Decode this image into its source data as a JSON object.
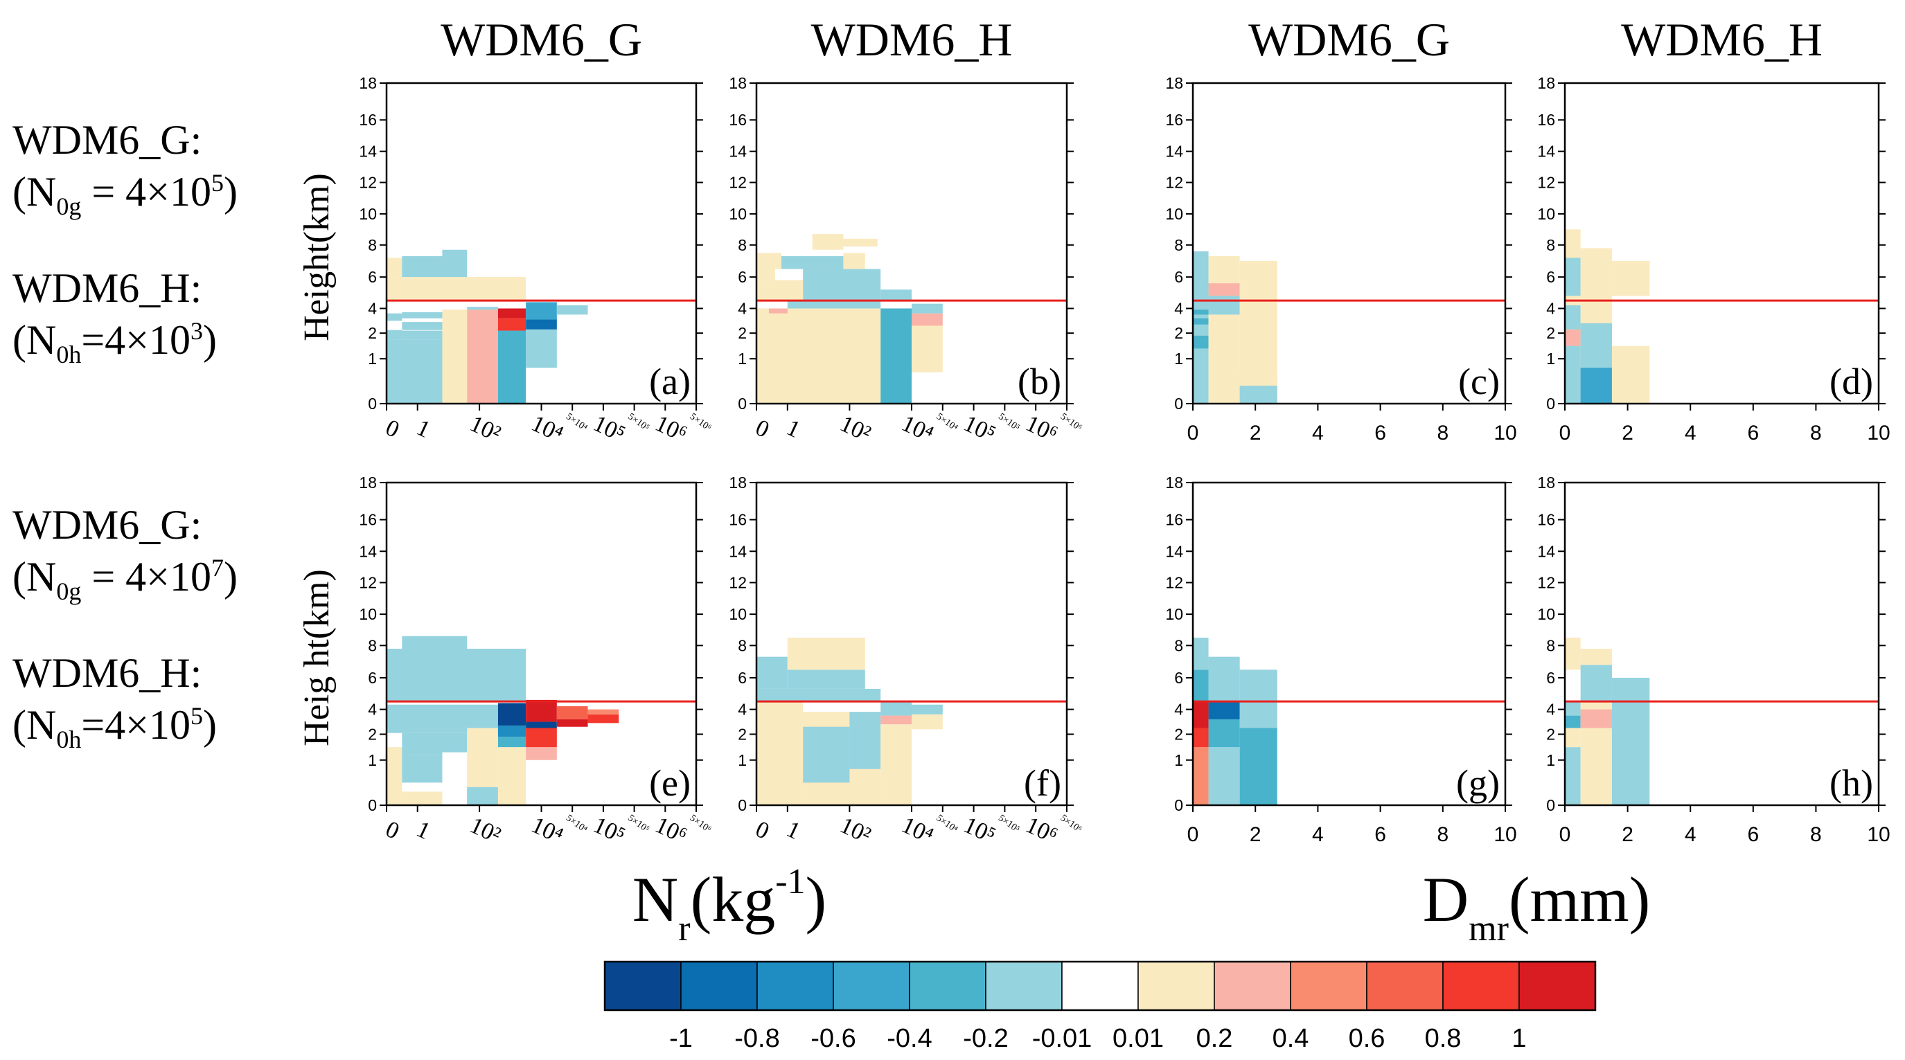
{
  "row_labels": [
    {
      "g_name": "WDM6_G:",
      "g_lhs": "(N",
      "g_sub": "0g",
      "g_rhs": " = 4×10",
      "g_exp": "5",
      "g_close": ")",
      "h_name": "WDM6_H:",
      "h_lhs": "(N",
      "h_sub": "0h",
      "h_rhs": "=4×10",
      "h_exp": "3",
      "h_close": ")"
    },
    {
      "g_name": "WDM6_G:",
      "g_lhs": "(N",
      "g_sub": "0g",
      "g_rhs": " = 4×10",
      "g_exp": "7",
      "g_close": ")",
      "h_name": "WDM6_H:",
      "h_lhs": "(N",
      "h_sub": "0h",
      "h_rhs": "=4×10",
      "h_exp": "5",
      "h_close": ")"
    }
  ],
  "colors": {
    "levels": [
      "#08478f",
      "#0b6eb0",
      "#1f8cc2",
      "#3aa6cd",
      "#49b3cc",
      "#95d3df",
      "#ffffff",
      "#faeac0",
      "#f9b3a8",
      "#f98c6e",
      "#f6634d",
      "#f3382d",
      "#d91c22"
    ],
    "reference_line": "#e8201c"
  },
  "chart_data": {
    "type": "heatmap",
    "column_titles": [
      "WDM6_G",
      "WDM6_H",
      "WDM6_G",
      "WDM6_H"
    ],
    "ylabels": [
      "Height(km)",
      "Heig ht(km)"
    ],
    "xlabels": {
      "nr": {
        "main": "N",
        "sub": "r",
        "unit_open": "(kg",
        "sup": "-1",
        "unit_close": ")"
      },
      "dmr": {
        "main": "D",
        "sub": "mr",
        "unit": "(mm)"
      }
    },
    "y_ticks": [
      {
        "v": 0,
        "l": "0"
      },
      {
        "v": 1,
        "l": "1"
      },
      {
        "v": 2,
        "l": "2"
      },
      {
        "v": 4,
        "l": "4"
      },
      {
        "v": 6,
        "l": "6"
      },
      {
        "v": 8,
        "l": "8"
      },
      {
        "v": 10,
        "l": "10"
      },
      {
        "v": 12,
        "l": "12"
      },
      {
        "v": 14,
        "l": "14"
      },
      {
        "v": 16,
        "l": "16"
      },
      {
        "v": 18,
        "l": "18"
      }
    ],
    "nr_x_ticks": [
      {
        "i": 0,
        "l": "0",
        "sm": false
      },
      {
        "i": 1,
        "l": "1",
        "sm": false
      },
      {
        "i": 3,
        "l": "10²",
        "sm": false
      },
      {
        "i": 5,
        "l": "10⁴",
        "sm": false
      },
      {
        "i": 6,
        "l": "5×10⁴",
        "sm": true
      },
      {
        "i": 7,
        "l": "10⁵",
        "sm": false
      },
      {
        "i": 8,
        "l": "5×10⁵",
        "sm": true
      },
      {
        "i": 9,
        "l": "10⁶",
        "sm": false
      },
      {
        "i": 10,
        "l": "5×10⁶",
        "sm": true
      }
    ],
    "dmr_x_ticks": [
      {
        "v": 0,
        "l": "0"
      },
      {
        "v": 2,
        "l": "2"
      },
      {
        "v": 4,
        "l": "4"
      },
      {
        "v": 6,
        "l": "6"
      },
      {
        "v": 8,
        "l": "8"
      },
      {
        "v": 10,
        "l": "10"
      }
    ],
    "nr_x_range": [
      0,
      10
    ],
    "dmr_x_range": [
      0,
      10
    ],
    "ylim": [
      0,
      18
    ],
    "reference_height_km": 4.5,
    "colorbar": {
      "labels": [
        "-1",
        "-0.8",
        "-0.6",
        "-0.4",
        "-0.2",
        "-0.01",
        "0.01",
        "0.2",
        "0.4",
        "0.6",
        "0.8",
        "1"
      ]
    },
    "panels": [
      {
        "id": "a",
        "label": "(a)",
        "xaxis": "nr",
        "cells": [
          {
            "x0": 0,
            "x1": 0.5,
            "y0": 1.75,
            "y1": 2.25,
            "c": 5
          },
          {
            "x0": 0.5,
            "x1": 1.8,
            "y0": 2.25,
            "y1": 2.9,
            "c": 5
          },
          {
            "x0": 0,
            "x1": 1.8,
            "y0": 0,
            "y1": 1.75,
            "c": 5
          },
          {
            "x0": 0.5,
            "x1": 1.8,
            "y0": 1.75,
            "y1": 2.2,
            "c": 5
          },
          {
            "x0": 0,
            "x1": 0.5,
            "y0": 3,
            "y1": 3.6,
            "c": 5
          },
          {
            "x0": 0.5,
            "x1": 1.8,
            "y0": 3.2,
            "y1": 3.7,
            "c": 5
          },
          {
            "x0": 1.8,
            "x1": 2.6,
            "y0": 0,
            "y1": 3.9,
            "c": 7
          },
          {
            "x0": 2.6,
            "x1": 3.6,
            "y0": 0,
            "y1": 3.9,
            "c": 8
          },
          {
            "x0": 2.6,
            "x1": 3.6,
            "y0": 3.9,
            "y1": 4.1,
            "c": 5
          },
          {
            "x0": 3.6,
            "x1": 4.5,
            "y0": 0,
            "y1": 2.2,
            "c": 4
          },
          {
            "x0": 3.6,
            "x1": 4.5,
            "y0": 2.2,
            "y1": 3.2,
            "c": 11
          },
          {
            "x0": 3.6,
            "x1": 4.5,
            "y0": 3.2,
            "y1": 4,
            "c": 12
          },
          {
            "x0": 4.5,
            "x1": 5.5,
            "y0": 0.8,
            "y1": 2.3,
            "c": 5
          },
          {
            "x0": 4.5,
            "x1": 5.5,
            "y0": 2.3,
            "y1": 3.1,
            "c": 1
          },
          {
            "x0": 4.5,
            "x1": 5.5,
            "y0": 3.1,
            "y1": 4.4,
            "c": 3
          },
          {
            "x0": 5.5,
            "x1": 6.5,
            "y0": 3.5,
            "y1": 4.2,
            "c": 5
          },
          {
            "x0": 0,
            "x1": 4.5,
            "y0": 4.5,
            "y1": 6,
            "c": 7
          },
          {
            "x0": 0,
            "x1": 0.5,
            "y0": 6,
            "y1": 7.2,
            "c": 7
          },
          {
            "x0": 0.5,
            "x1": 1.8,
            "y0": 6,
            "y1": 7.3,
            "c": 5
          },
          {
            "x0": 1.8,
            "x1": 2.6,
            "y0": 6,
            "y1": 7.7,
            "c": 5
          }
        ]
      },
      {
        "id": "b",
        "label": "(b)",
        "xaxis": "nr",
        "cells": [
          {
            "x0": 0,
            "x1": 4,
            "y0": 0,
            "y1": 4,
            "c": 7
          },
          {
            "x0": 4,
            "x1": 5,
            "y0": 0,
            "y1": 4,
            "c": 4
          },
          {
            "x0": 5,
            "x1": 6,
            "y0": 0.7,
            "y1": 2.6,
            "c": 7
          },
          {
            "x0": 5,
            "x1": 6,
            "y0": 2.6,
            "y1": 3.6,
            "c": 8
          },
          {
            "x0": 5,
            "x1": 6,
            "y0": 3.6,
            "y1": 4.3,
            "c": 5
          },
          {
            "x0": 0.4,
            "x1": 1,
            "y0": 3.6,
            "y1": 4,
            "c": 8
          },
          {
            "x0": 1,
            "x1": 4,
            "y0": 4,
            "y1": 4.5,
            "c": 5
          },
          {
            "x0": 0,
            "x1": 1.5,
            "y0": 4.5,
            "y1": 5.8,
            "c": 7
          },
          {
            "x0": 1.5,
            "x1": 4,
            "y0": 4.5,
            "y1": 6.5,
            "c": 5
          },
          {
            "x0": 4,
            "x1": 5,
            "y0": 4.5,
            "y1": 5.2,
            "c": 5
          },
          {
            "x0": 0,
            "x1": 0.6,
            "y0": 5.8,
            "y1": 6.5,
            "c": 7
          },
          {
            "x0": 0.8,
            "x1": 2.8,
            "y0": 6.5,
            "y1": 7.3,
            "c": 5
          },
          {
            "x0": 0,
            "x1": 0.8,
            "y0": 6.5,
            "y1": 7.5,
            "c": 7
          },
          {
            "x0": 2.8,
            "x1": 3.5,
            "y0": 6.5,
            "y1": 7.5,
            "c": 7
          },
          {
            "x0": 1.8,
            "x1": 2.8,
            "y0": 7.7,
            "y1": 8.7,
            "c": 7
          },
          {
            "x0": 2.8,
            "x1": 3.9,
            "y0": 7.9,
            "y1": 8.4,
            "c": 7
          }
        ]
      },
      {
        "id": "c",
        "label": "(c)",
        "xaxis": "dmr",
        "cells": [
          {
            "x0": 0,
            "x1": 0.5,
            "y0": 0,
            "y1": 7.6,
            "c": 5
          },
          {
            "x0": 0,
            "x1": 0.5,
            "y0": 1.4,
            "y1": 1.9,
            "c": 4
          },
          {
            "x0": 0,
            "x1": 0.5,
            "y0": 2.7,
            "y1": 3.2,
            "c": 4
          },
          {
            "x0": 0,
            "x1": 0.5,
            "y0": 3.5,
            "y1": 3.9,
            "c": 4
          },
          {
            "x0": 0.5,
            "x1": 1.5,
            "y0": 0,
            "y1": 7.3,
            "c": 7
          },
          {
            "x0": 0.5,
            "x1": 1.5,
            "y0": 4.8,
            "y1": 5.6,
            "c": 8
          },
          {
            "x0": 0.5,
            "x1": 1.5,
            "y0": 3.5,
            "y1": 4.8,
            "c": 5
          },
          {
            "x0": 1.5,
            "x1": 2.7,
            "y0": 0,
            "y1": 7,
            "c": 7
          },
          {
            "x0": 1.5,
            "x1": 2.7,
            "y0": 0,
            "y1": 0.7,
            "c": 7
          },
          {
            "x0": 1.5,
            "x1": 2.7,
            "y0": 0,
            "y1": 0.4,
            "c": 5
          }
        ]
      },
      {
        "id": "d",
        "label": "(d)",
        "xaxis": "dmr",
        "cells": [
          {
            "x0": 0,
            "x1": 0.5,
            "y0": 0,
            "y1": 9,
            "c": 7
          },
          {
            "x0": 0,
            "x1": 0.5,
            "y0": 4.8,
            "y1": 7.2,
            "c": 5
          },
          {
            "x0": 0,
            "x1": 0.5,
            "y0": 1.5,
            "y1": 2.3,
            "c": 8
          },
          {
            "x0": 0,
            "x1": 0.5,
            "y0": 0,
            "y1": 1.5,
            "c": 5
          },
          {
            "x0": 0,
            "x1": 0.5,
            "y0": 2.3,
            "y1": 4.2,
            "c": 5
          },
          {
            "x0": 0.5,
            "x1": 1.5,
            "y0": 0,
            "y1": 7.8,
            "c": 7
          },
          {
            "x0": 0.5,
            "x1": 1.5,
            "y0": 0,
            "y1": 2.8,
            "c": 5
          },
          {
            "x0": 0.5,
            "x1": 1.5,
            "y0": 0,
            "y1": 0.8,
            "c": 3
          },
          {
            "x0": 1.5,
            "x1": 2.7,
            "y0": 0,
            "y1": 1.5,
            "c": 7
          },
          {
            "x0": 1.5,
            "x1": 2.7,
            "y0": 4.8,
            "y1": 7,
            "c": 7
          }
        ]
      },
      {
        "id": "e",
        "label": "(e)",
        "xaxis": "nr",
        "cells": [
          {
            "x0": 0,
            "x1": 0.5,
            "y0": 0,
            "y1": 1.5,
            "c": 7
          },
          {
            "x0": 0.5,
            "x1": 1.8,
            "y0": 0.5,
            "y1": 1.2,
            "c": 5
          },
          {
            "x0": 0.5,
            "x1": 1.8,
            "y0": 1.2,
            "y1": 2.1,
            "c": 5
          },
          {
            "x0": 0,
            "x1": 3.6,
            "y0": 2.1,
            "y1": 4.3,
            "c": 5
          },
          {
            "x0": 1.8,
            "x1": 2.6,
            "y0": 1.3,
            "y1": 2.1,
            "c": 5
          },
          {
            "x0": 2.6,
            "x1": 3.6,
            "y0": 0,
            "y1": 2.5,
            "c": 7
          },
          {
            "x0": 2.6,
            "x1": 3.6,
            "y0": 0,
            "y1": 0.4,
            "c": 5
          },
          {
            "x0": 0.5,
            "x1": 1.8,
            "y0": 0,
            "y1": 0.3,
            "c": 7
          },
          {
            "x0": 3.6,
            "x1": 4.5,
            "y0": 0,
            "y1": 1.5,
            "c": 7
          },
          {
            "x0": 3.6,
            "x1": 4.5,
            "y0": 1.5,
            "y1": 1.9,
            "c": 4
          },
          {
            "x0": 3.6,
            "x1": 4.5,
            "y0": 1.9,
            "y1": 2.7,
            "c": 2
          },
          {
            "x0": 3.6,
            "x1": 4.5,
            "y0": 2.7,
            "y1": 4.4,
            "c": 0
          },
          {
            "x0": 4.5,
            "x1": 5.5,
            "y0": 1,
            "y1": 1.5,
            "c": 8
          },
          {
            "x0": 4.5,
            "x1": 5.5,
            "y0": 1.5,
            "y1": 2.5,
            "c": 11
          },
          {
            "x0": 4.5,
            "x1": 5.5,
            "y0": 2.5,
            "y1": 3,
            "c": 0
          },
          {
            "x0": 4.5,
            "x1": 5.5,
            "y0": 3,
            "y1": 4.6,
            "c": 12
          },
          {
            "x0": 5.5,
            "x1": 6.5,
            "y0": 2.6,
            "y1": 3.2,
            "c": 12
          },
          {
            "x0": 5.5,
            "x1": 6.5,
            "y0": 3.2,
            "y1": 4.2,
            "c": 10
          },
          {
            "x0": 6.5,
            "x1": 7.5,
            "y0": 2.9,
            "y1": 3.6,
            "c": 11
          },
          {
            "x0": 6.5,
            "x1": 7.5,
            "y0": 3.6,
            "y1": 4,
            "c": 9
          },
          {
            "x0": 0,
            "x1": 4.5,
            "y0": 4.5,
            "y1": 7.8,
            "c": 5
          },
          {
            "x0": 0.5,
            "x1": 2.6,
            "y0": 7.8,
            "y1": 8.6,
            "c": 5
          }
        ]
      },
      {
        "id": "f",
        "label": "(f)",
        "xaxis": "nr",
        "cells": [
          {
            "x0": 0,
            "x1": 1.5,
            "y0": 0,
            "y1": 4.5,
            "c": 7
          },
          {
            "x0": 1.5,
            "x1": 4,
            "y0": 0,
            "y1": 3.8,
            "c": 7
          },
          {
            "x0": 1.5,
            "x1": 3,
            "y0": 0.5,
            "y1": 2.6,
            "c": 5
          },
          {
            "x0": 3,
            "x1": 4,
            "y0": 0.8,
            "y1": 3.8,
            "c": 5
          },
          {
            "x0": 4,
            "x1": 5,
            "y0": 0,
            "y1": 2.8,
            "c": 7
          },
          {
            "x0": 4,
            "x1": 5,
            "y0": 2.8,
            "y1": 3.5,
            "c": 8
          },
          {
            "x0": 4,
            "x1": 5,
            "y0": 3.5,
            "y1": 4.5,
            "c": 5
          },
          {
            "x0": 5,
            "x1": 6,
            "y0": 2.4,
            "y1": 3.6,
            "c": 7
          },
          {
            "x0": 5,
            "x1": 6,
            "y0": 3.6,
            "y1": 4.3,
            "c": 5
          },
          {
            "x0": 0,
            "x1": 4,
            "y0": 4.5,
            "y1": 5.3,
            "c": 5
          },
          {
            "x0": 0,
            "x1": 1,
            "y0": 5.3,
            "y1": 7.3,
            "c": 5
          },
          {
            "x0": 1,
            "x1": 3.5,
            "y0": 5.3,
            "y1": 6.5,
            "c": 5
          },
          {
            "x0": 1,
            "x1": 3.5,
            "y0": 6.5,
            "y1": 8.5,
            "c": 7
          }
        ]
      },
      {
        "id": "g",
        "label": "(g)",
        "xaxis": "dmr",
        "cells": [
          {
            "x0": 0,
            "x1": 0.5,
            "y0": 0,
            "y1": 1.5,
            "c": 9
          },
          {
            "x0": 0,
            "x1": 0.5,
            "y0": 1.5,
            "y1": 2.5,
            "c": 11
          },
          {
            "x0": 0,
            "x1": 0.5,
            "y0": 2.5,
            "y1": 4.5,
            "c": 12
          },
          {
            "x0": 0,
            "x1": 0.5,
            "y0": 4.5,
            "y1": 6.5,
            "c": 4
          },
          {
            "x0": 0,
            "x1": 0.5,
            "y0": 6.5,
            "y1": 8.5,
            "c": 5
          },
          {
            "x0": 0.5,
            "x1": 1.5,
            "y0": 0,
            "y1": 1.5,
            "c": 5
          },
          {
            "x0": 0.5,
            "x1": 1.5,
            "y0": 1.5,
            "y1": 3.2,
            "c": 4
          },
          {
            "x0": 0.5,
            "x1": 1.5,
            "y0": 3.2,
            "y1": 4.5,
            "c": 1
          },
          {
            "x0": 0.5,
            "x1": 1.5,
            "y0": 4.5,
            "y1": 7.3,
            "c": 5
          },
          {
            "x0": 1.5,
            "x1": 2.7,
            "y0": 0,
            "y1": 2.5,
            "c": 4
          },
          {
            "x0": 1.5,
            "x1": 2.7,
            "y0": 2.5,
            "y1": 6.5,
            "c": 5
          }
        ]
      },
      {
        "id": "h",
        "label": "(h)",
        "xaxis": "dmr",
        "cells": [
          {
            "x0": 0,
            "x1": 0.5,
            "y0": 0,
            "y1": 1.5,
            "c": 5
          },
          {
            "x0": 0,
            "x1": 0.5,
            "y0": 1.5,
            "y1": 2.5,
            "c": 7
          },
          {
            "x0": 0,
            "x1": 0.5,
            "y0": 2.5,
            "y1": 3.5,
            "c": 4
          },
          {
            "x0": 0,
            "x1": 0.5,
            "y0": 3.5,
            "y1": 4.5,
            "c": 5
          },
          {
            "x0": 0,
            "x1": 0.5,
            "y0": 6.5,
            "y1": 8.5,
            "c": 7
          },
          {
            "x0": 0.5,
            "x1": 1.5,
            "y0": 0,
            "y1": 4.5,
            "c": 7
          },
          {
            "x0": 0.5,
            "x1": 1.5,
            "y0": 2.5,
            "y1": 4,
            "c": 8
          },
          {
            "x0": 0.5,
            "x1": 1.5,
            "y0": 4.5,
            "y1": 6.8,
            "c": 5
          },
          {
            "x0": 0.5,
            "x1": 1.5,
            "y0": 6.8,
            "y1": 7.8,
            "c": 7
          },
          {
            "x0": 1.5,
            "x1": 2.7,
            "y0": 0,
            "y1": 6,
            "c": 5
          }
        ]
      }
    ]
  }
}
